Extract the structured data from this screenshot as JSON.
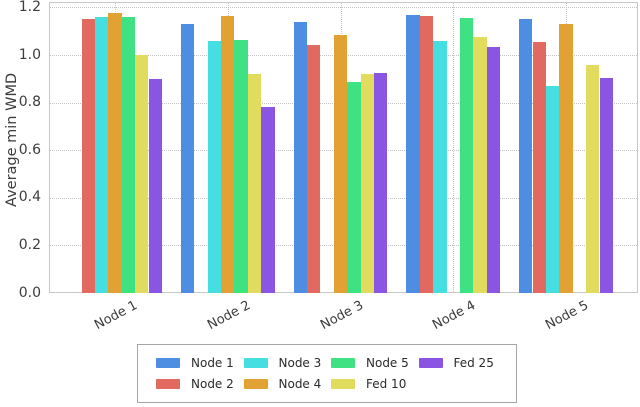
{
  "chart_data": {
    "type": "bar",
    "title": "",
    "xlabel": "",
    "ylabel": "Average min WMD",
    "ylim": [
      0,
      1.2
    ],
    "yticks": [
      0,
      0.2,
      0.4,
      0.6,
      0.8,
      1.0,
      1.2
    ],
    "ytick_labels": [
      "0.0",
      "0.2",
      "0.4",
      "0.6",
      "0.8",
      "1.0",
      "1.2"
    ],
    "categories": [
      "Node 1",
      "Node 2",
      "Node 3",
      "Node 4",
      "Node 5"
    ],
    "grid": {
      "horizontal": true,
      "vertical": true,
      "style": "dotted",
      "color": "#c4c4c4"
    },
    "legend": {
      "position": "bottom-center",
      "columns": 4,
      "rows": 2,
      "fill_order": "column-major",
      "entries": [
        "Node 1",
        "Node 2",
        "Node 3",
        "Node 4",
        "Node 5",
        "Fed 10",
        "Fed 25"
      ]
    },
    "series": [
      {
        "name": "Node 1",
        "color": "#4d8ee2",
        "values": [
          null,
          1.13,
          1.14,
          1.17,
          1.15
        ]
      },
      {
        "name": "Node 2",
        "color": "#e2695f",
        "values": [
          1.15,
          null,
          1.04,
          1.165,
          1.055
        ]
      },
      {
        "name": "Node 3",
        "color": "#45dfe2",
        "values": [
          1.16,
          1.06,
          null,
          1.06,
          0.87
        ]
      },
      {
        "name": "Node 4",
        "color": "#e2a233",
        "values": [
          1.175,
          1.165,
          1.085,
          null,
          1.13
        ]
      },
      {
        "name": "Node 5",
        "color": "#3ee283",
        "values": [
          1.16,
          1.065,
          0.885,
          1.155,
          null
        ]
      },
      {
        "name": "Fed 10",
        "color": "#e2dc5e",
        "values": [
          1.0,
          0.92,
          0.92,
          1.075,
          0.96
        ]
      },
      {
        "name": "Fed 25",
        "color": "#8b55e3",
        "values": [
          0.9,
          0.78,
          0.925,
          1.035,
          0.905
        ]
      }
    ]
  }
}
